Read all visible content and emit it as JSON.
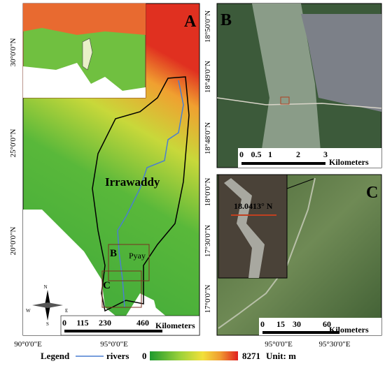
{
  "panel_a": {
    "label": "A",
    "lat_labels": [
      "30°0'0\"N",
      "25°0'0\"N",
      "20°0'0\"N"
    ],
    "basin": "Irrawaddy",
    "site_b": "B",
    "site_c": "C",
    "city": "Pyay",
    "scale": [
      "0",
      "115",
      "230",
      "460"
    ],
    "scale_unit": "Kilometers",
    "compass": [
      "N",
      "S",
      "E",
      "W"
    ]
  },
  "panel_b": {
    "label": "B",
    "lat_labels": [
      "18°50'0\"N",
      "18°49'0\"N",
      "18°48'0\"N"
    ],
    "scale": [
      "0",
      "0.5",
      "1",
      "2",
      "3"
    ],
    "scale_unit": "Kilometers"
  },
  "panel_c": {
    "label": "C",
    "lat_labels": [
      "18°0'0\"N",
      "17°30'0\"N",
      "17°0'0\"N"
    ],
    "inset_label": "18.0413° N",
    "scale": [
      "0",
      "15",
      "30",
      "60"
    ],
    "scale_unit": "Kilometers"
  },
  "lon_labels": [
    "90°0'0\"E",
    "95°0'0\"E",
    "95°0'0\"E",
    "95°30'0\"E"
  ],
  "legend": {
    "title": "Legend",
    "rivers": "rivers",
    "min": "0",
    "max": "8271",
    "unit": "Unit: m"
  }
}
